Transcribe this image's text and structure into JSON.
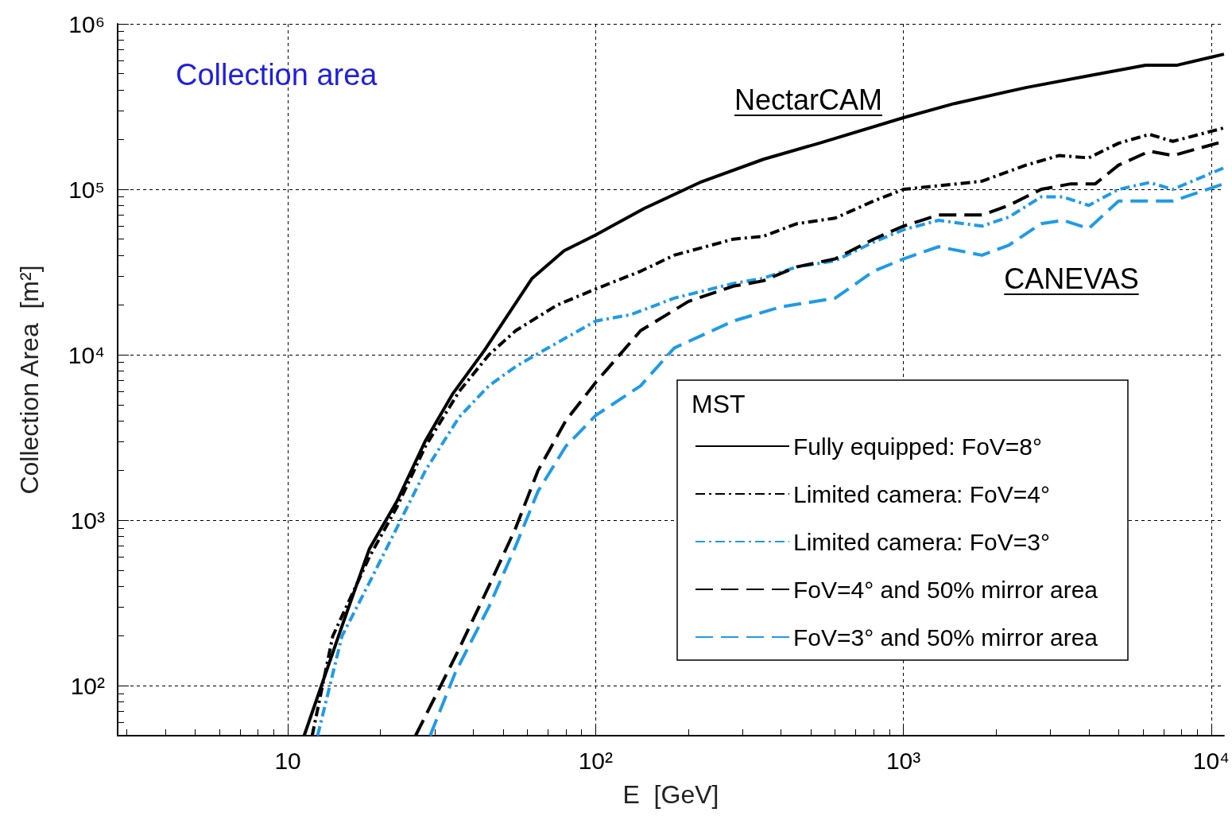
{
  "chart_data": {
    "type": "line",
    "title": "Collection area",
    "xlabel": "E  [GeV]",
    "ylabel": "Collection Area  [m²]",
    "legend_title": "MST",
    "log": "xy",
    "grid": true,
    "legend": "bottom right",
    "marker": "none",
    "xlim": [
      2.8,
      11000
    ],
    "xticks": [
      {
        "value": 10,
        "label": "10"
      },
      {
        "value": 100,
        "label": "10²"
      },
      {
        "value": 1000,
        "label": "10³"
      },
      {
        "value": 10000,
        "label": "10⁴"
      }
    ],
    "ylim": [
      50,
      1000000
    ],
    "yticks": [
      {
        "value": 100,
        "label": "10²"
      },
      {
        "value": 1000,
        "label": "10³"
      },
      {
        "value": 10000,
        "label": "10⁴"
      },
      {
        "value": 100000,
        "label": "10⁵"
      },
      {
        "value": 1000000,
        "label": "10⁶"
      }
    ],
    "annotations": [
      "NectarCAM",
      "CANEVAS"
    ],
    "series": [
      {
        "name": "Fully equipped: FoV=8°",
        "color": "#000000",
        "line_style": "solid",
        "x": [
          11.3,
          14.9,
          18.4,
          22.6,
          27.9,
          34.3,
          43.6,
          62.2,
          79,
          100,
          144,
          218,
          351,
          532,
          1000,
          1465,
          2500,
          4030,
          6120,
          7760,
          11000
        ],
        "values": [
          50,
          222,
          671,
          1300,
          2990,
          5800,
          10700,
          29000,
          42600,
          53000,
          76700,
          110000,
          152000,
          190000,
          271000,
          330000,
          412000,
          487000,
          563000,
          563000,
          656000
        ]
      },
      {
        "name": "Limited camera: FoV=4°",
        "color": "#000000",
        "line_style": "dashdot",
        "x": [
          12,
          14,
          18.4,
          22.6,
          28,
          36,
          45,
          55,
          75,
          100,
          140,
          180,
          280,
          350,
          450,
          600,
          800,
          1000,
          1500,
          1800,
          2500,
          3200,
          4000,
          5000,
          6300,
          7500,
          11000
        ],
        "values": [
          50,
          200,
          600,
          1200,
          2800,
          6000,
          10000,
          14000,
          20000,
          25000,
          32000,
          40000,
          50000,
          52000,
          62000,
          67000,
          85000,
          100000,
          108000,
          112000,
          140000,
          160000,
          155000,
          190000,
          215000,
          195000,
          235000
        ]
      },
      {
        "name": "Limited camera: FoV=3°",
        "color": "#1e9be8",
        "line_style": "dashdot",
        "x": [
          12.5,
          15,
          18.4,
          22.6,
          28,
          36,
          45,
          55,
          70,
          100,
          130,
          180,
          280,
          350,
          450,
          600,
          800,
          1000,
          1300,
          1800,
          2200,
          2800,
          3300,
          4000,
          5000,
          6300,
          7500,
          11000
        ],
        "values": [
          50,
          200,
          420,
          900,
          2000,
          4200,
          6500,
          8500,
          11000,
          16000,
          17500,
          22000,
          27000,
          29000,
          34000,
          37000,
          48000,
          57000,
          65000,
          60000,
          68000,
          90000,
          90000,
          80000,
          100000,
          110000,
          100000,
          135000
        ]
      },
      {
        "name": "FoV=4° and 50% mirror area",
        "color": "#000000",
        "line_style": "dashed",
        "x": [
          26,
          35,
          45,
          55,
          65,
          80,
          100,
          140,
          200,
          280,
          350,
          450,
          600,
          800,
          1000,
          1300,
          1800,
          2200,
          2800,
          3500,
          4200,
          5000,
          6300,
          7500,
          11000
        ],
        "values": [
          50,
          150,
          400,
          900,
          2000,
          4000,
          6800,
          14000,
          21000,
          26000,
          28000,
          34000,
          38000,
          50000,
          60000,
          70000,
          70000,
          80000,
          100000,
          108000,
          108000,
          140000,
          170000,
          160000,
          195000
        ]
      },
      {
        "name": "FoV=3° and 50% mirror area",
        "color": "#1e9be8",
        "line_style": "dashed",
        "x": [
          29,
          35,
          45,
          55,
          65,
          80,
          100,
          140,
          180,
          280,
          400,
          600,
          800,
          1000,
          1300,
          1800,
          2200,
          2800,
          3300,
          4000,
          5000,
          6300,
          7500,
          11000
        ],
        "values": [
          50,
          120,
          300,
          700,
          1500,
          2800,
          4300,
          6500,
          11000,
          16000,
          19500,
          22000,
          32000,
          38000,
          45000,
          40000,
          46000,
          62000,
          65000,
          58000,
          85000,
          85000,
          85000,
          108000
        ]
      }
    ]
  }
}
